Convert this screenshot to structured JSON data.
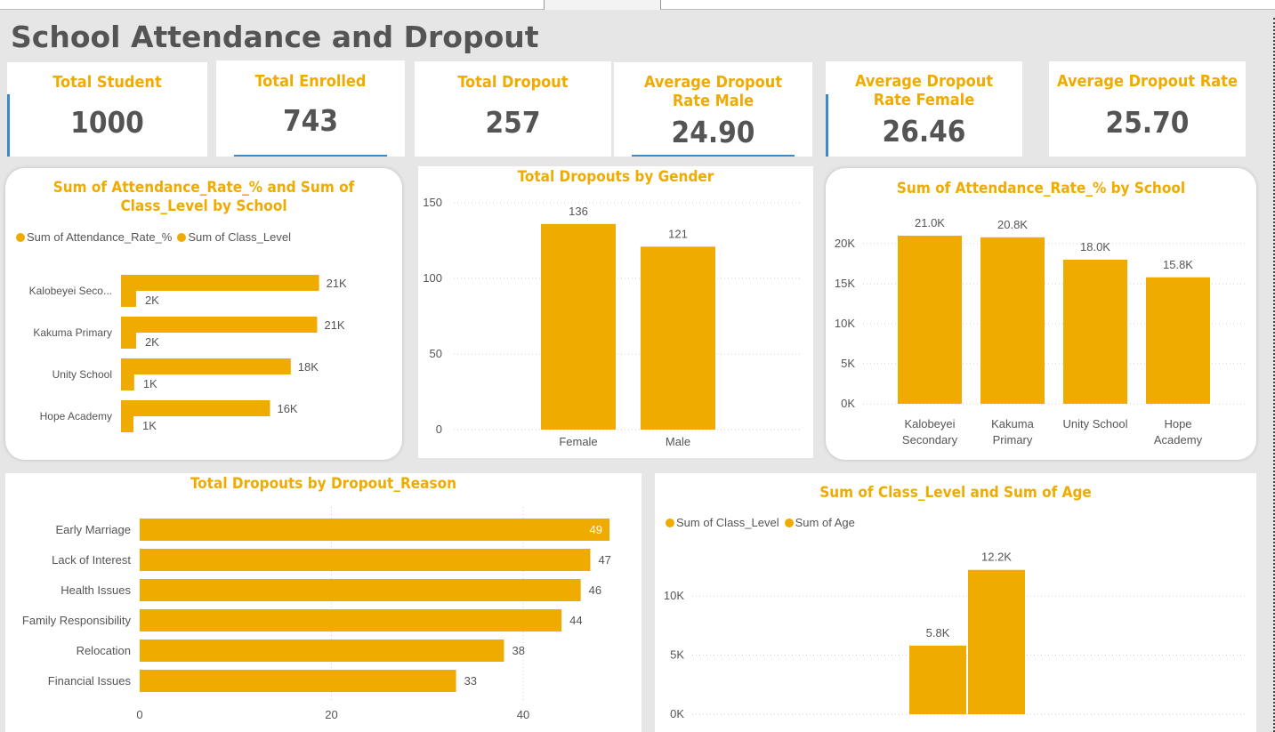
{
  "page": {
    "title": "School Attendance and Dropout"
  },
  "colors": {
    "accent": "#f0ab00",
    "text": "#545454",
    "border_accent": "#3b89c9"
  },
  "kpis": [
    {
      "label": "Total Student",
      "value": "1000"
    },
    {
      "label": "Total Enrolled",
      "value": "743"
    },
    {
      "label": "Total Dropout",
      "value": "257"
    },
    {
      "label": "Average Dropout Rate Male",
      "value": "24.90"
    },
    {
      "label": "Average Dropout Rate Female",
      "value": "26.46"
    },
    {
      "label": "Average Dropout Rate",
      "value": "25.70"
    }
  ],
  "chart_data": [
    {
      "id": "attendance_class_by_school",
      "type": "bar",
      "orientation": "horizontal",
      "title": "Sum of Attendance_Rate_% and Sum of Class_Level by School",
      "categories": [
        "Kalobeyei Seco...",
        "Kakuma Primary",
        "Unity School",
        "Hope Academy"
      ],
      "series": [
        {
          "name": "Sum of Attendance_Rate_%",
          "values": [
            21000,
            20800,
            18000,
            15800
          ],
          "labels": [
            "21K",
            "21K",
            "18K",
            "16K"
          ]
        },
        {
          "name": "Sum of Class_Level",
          "values": [
            1600,
            1600,
            1400,
            1300
          ],
          "labels": [
            "2K",
            "2K",
            "1K",
            "1K"
          ]
        }
      ],
      "legend": "top-left",
      "xlim": [
        0,
        25000
      ]
    },
    {
      "id": "dropouts_by_gender",
      "type": "bar",
      "title": "Total Dropouts by Gender",
      "categories": [
        "Female",
        "Male"
      ],
      "values": [
        136,
        121
      ],
      "yticks": [
        "0",
        "50",
        "100",
        "150"
      ],
      "ylim": [
        0,
        150
      ],
      "grid": true
    },
    {
      "id": "attendance_by_school",
      "type": "bar",
      "title": "Sum of Attendance_Rate_% by School",
      "categories": [
        [
          "Kalobeyei",
          "Secondary"
        ],
        [
          "Kakuma",
          "Primary"
        ],
        [
          "Unity School"
        ],
        [
          "Hope",
          "Academy"
        ]
      ],
      "values": [
        21000,
        20800,
        18000,
        15800
      ],
      "labels": [
        "21.0K",
        "20.8K",
        "18.0K",
        "15.8K"
      ],
      "yticks": [
        "0K",
        "5K",
        "10K",
        "15K",
        "20K"
      ],
      "ylim": [
        0,
        20000
      ],
      "grid": true
    },
    {
      "id": "dropouts_by_reason",
      "type": "bar",
      "orientation": "horizontal",
      "title": "Total Dropouts by Dropout_Reason",
      "categories": [
        "Early Marriage",
        "Lack of Interest",
        "Health Issues",
        "Family Responsibility",
        "Relocation",
        "Financial Issues"
      ],
      "values": [
        49,
        47,
        46,
        44,
        38,
        33
      ],
      "xticks": [
        "0",
        "20",
        "40"
      ],
      "xlim": [
        0,
        49
      ],
      "grid": true
    },
    {
      "id": "class_level_and_age",
      "type": "bar",
      "title": "Sum of Class_Level and Sum of Age",
      "series": [
        {
          "name": "Sum of Class_Level",
          "values": [
            5800
          ],
          "labels": [
            "5.8K"
          ]
        },
        {
          "name": "Sum of Age",
          "values": [
            12200
          ],
          "labels": [
            "12.2K"
          ]
        }
      ],
      "yticks": [
        "0K",
        "5K",
        "10K"
      ],
      "ylim": [
        0,
        10000
      ],
      "legend": "top-left",
      "grid": true
    }
  ]
}
